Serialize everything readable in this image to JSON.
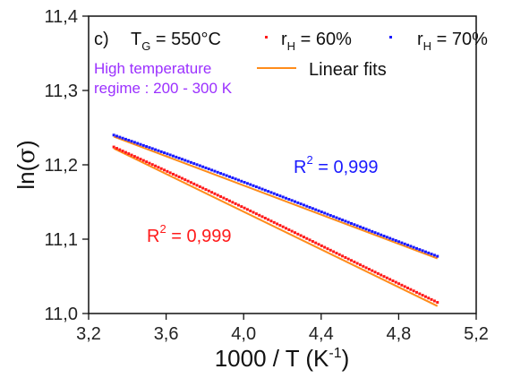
{
  "chart_data": {
    "type": "scatter",
    "panel_label": "c)",
    "legend_title_var": "T",
    "legend_title_sub": "G",
    "legend_title_value": " = 550°C",
    "xlabel": "1000 / T (K",
    "xlabel_sup": "-1",
    "xlabel_end": ")",
    "ylabel_prefix": "ln(",
    "ylabel_symbol": "σ",
    "ylabel_suffix": ")",
    "xlim": [
      3.2,
      5.2
    ],
    "ylim": [
      11.0,
      11.4
    ],
    "x_ticks": [
      "3,2",
      "3,6",
      "4,0",
      "4,4",
      "4,8",
      "5,2"
    ],
    "y_ticks": [
      "11,0",
      "11,1",
      "11,2",
      "11,3",
      "11,4"
    ],
    "annotation_line1": "High temperature",
    "annotation_line2": "regime : 200 - 300 K",
    "annotation_color": "#9b30ff",
    "fit_label": "Linear fits",
    "fit_color": "#ff8c1a",
    "series": [
      {
        "legend_var": "r",
        "legend_sub": "H",
        "legend_value": " = 60%",
        "color": "#ff1a1a",
        "x_start": 3.33,
        "x_end": 5.0,
        "y_start": 11.224,
        "y_end": 11.015,
        "fit_start": 11.222,
        "fit_end": 11.01,
        "r2_label": "R",
        "r2_sup": "2",
        "r2_value": " = 0,999"
      },
      {
        "legend_var": "r",
        "legend_sub": "H",
        "legend_value": " = 70%",
        "color": "#1a1aff",
        "x_start": 3.33,
        "x_end": 5.0,
        "y_start": 11.24,
        "y_end": 11.077,
        "fit_start": 11.238,
        "fit_end": 11.074,
        "r2_label": "R",
        "r2_sup": "2",
        "r2_value": " = 0,999"
      }
    ]
  }
}
